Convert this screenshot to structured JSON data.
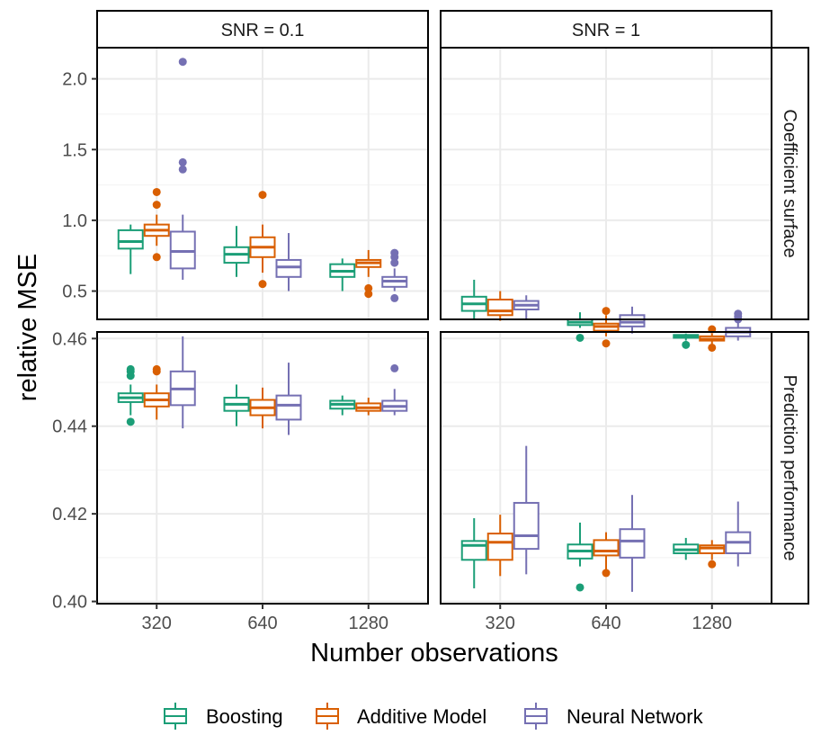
{
  "chart_data": {
    "type": "boxplot",
    "xlabel": "Number observations",
    "ylabel": "relative MSE",
    "categories": [
      "320",
      "640",
      "1280"
    ],
    "col_facets": [
      "SNR = 0.1",
      "SNR = 1"
    ],
    "row_facets": [
      "Coefficient surface",
      "Prediction performance"
    ],
    "legend": {
      "position": "bottom",
      "entries": [
        {
          "name": "Boosting",
          "color": "#1B9E77"
        },
        {
          "name": "Additive Model",
          "color": "#D95F02"
        },
        {
          "name": "Neural Network",
          "color": "#7570B3"
        }
      ]
    },
    "rows": [
      {
        "facet": "Coefficient surface",
        "ylim": [
          0.3,
          2.22
        ],
        "yticks": [
          0.5,
          1.0,
          1.5,
          2.0
        ],
        "ytick_labels": [
          "0.5",
          "1.0",
          "1.5",
          "2.0"
        ],
        "minor_yticks": [
          0.75,
          1.25,
          1.75
        ],
        "panels": [
          {
            "facet": "SNR = 0.1",
            "boxes": [
              {
                "category": "320",
                "series": "Boosting",
                "stats": [
                  0.62,
                  0.8,
                  0.85,
                  0.93,
                  0.97
                ],
                "outliers": []
              },
              {
                "category": "320",
                "series": "Additive Model",
                "stats": [
                  0.82,
                  0.89,
                  0.93,
                  0.97,
                  1.04
                ],
                "outliers": [
                  0.74,
                  1.11,
                  1.2
                ]
              },
              {
                "category": "320",
                "series": "Neural Network",
                "stats": [
                  0.58,
                  0.66,
                  0.78,
                  0.92,
                  1.04
                ],
                "outliers": [
                  1.36,
                  1.41,
                  2.12
                ]
              },
              {
                "category": "640",
                "series": "Boosting",
                "stats": [
                  0.6,
                  0.7,
                  0.76,
                  0.81,
                  0.96
                ],
                "outliers": []
              },
              {
                "category": "640",
                "series": "Additive Model",
                "stats": [
                  0.63,
                  0.74,
                  0.81,
                  0.88,
                  0.97
                ],
                "outliers": [
                  0.55,
                  1.18
                ]
              },
              {
                "category": "640",
                "series": "Neural Network",
                "stats": [
                  0.5,
                  0.6,
                  0.67,
                  0.72,
                  0.91
                ],
                "outliers": []
              },
              {
                "category": "1280",
                "series": "Boosting",
                "stats": [
                  0.5,
                  0.6,
                  0.64,
                  0.69,
                  0.73
                ],
                "outliers": []
              },
              {
                "category": "1280",
                "series": "Additive Model",
                "stats": [
                  0.6,
                  0.67,
                  0.7,
                  0.72,
                  0.79
                ],
                "outliers": [
                  0.48,
                  0.52
                ]
              },
              {
                "category": "1280",
                "series": "Neural Network",
                "stats": [
                  0.5,
                  0.53,
                  0.57,
                  0.6,
                  0.66
                ],
                "outliers": [
                  0.45,
                  0.7,
                  0.74,
                  0.77
                ]
              }
            ]
          },
          {
            "facet": "SNR = 1",
            "boxes": [
              {
                "category": "320",
                "series": "Boosting",
                "stats": [
                  0.3,
                  0.36,
                  0.41,
                  0.46,
                  0.58
                ],
                "outliers": []
              },
              {
                "category": "320",
                "series": "Additive Model",
                "stats": [
                  0.29,
                  0.33,
                  0.36,
                  0.44,
                  0.5
                ],
                "outliers": []
              },
              {
                "category": "320",
                "series": "Neural Network",
                "stats": [
                  0.3,
                  0.37,
                  0.4,
                  0.43,
                  0.47
                ],
                "outliers": []
              },
              {
                "category": "640",
                "series": "Boosting",
                "stats": [
                  0.24,
                  0.26,
                  0.28,
                  0.3,
                  0.35
                ],
                "outliers": [
                  0.17
                ]
              },
              {
                "category": "640",
                "series": "Additive Model",
                "stats": [
                  0.18,
                  0.22,
                  0.25,
                  0.27,
                  0.33
                ],
                "outliers": [
                  0.13,
                  0.36
                ]
              },
              {
                "category": "640",
                "series": "Neural Network",
                "stats": [
                  0.2,
                  0.25,
                  0.28,
                  0.33,
                  0.39
                ],
                "outliers": []
              },
              {
                "category": "1280",
                "series": "Boosting",
                "stats": [
                  0.15,
                  0.17,
                  0.18,
                  0.19,
                  0.2
                ],
                "outliers": [
                  0.12
                ]
              },
              {
                "category": "1280",
                "series": "Additive Model",
                "stats": [
                  0.12,
                  0.15,
                  0.16,
                  0.18,
                  0.2
                ],
                "outliers": [
                  0.1,
                  0.23
                ]
              },
              {
                "category": "1280",
                "series": "Neural Network",
                "stats": [
                  0.15,
                  0.18,
                  0.21,
                  0.24,
                  0.28
                ],
                "outliers": [
                  0.3,
                  0.32,
                  0.34
                ]
              }
            ]
          }
        ]
      },
      {
        "facet": "Prediction performance",
        "ylim": [
          0.3995,
          0.4615
        ],
        "yticks": [
          0.4,
          0.42,
          0.44,
          0.46
        ],
        "ytick_labels": [
          "0.40",
          "0.42",
          "0.44",
          "0.46"
        ],
        "minor_yticks": [
          0.41,
          0.43,
          0.45
        ],
        "panels": [
          {
            "facet": "SNR = 0.1",
            "boxes": [
              {
                "category": "320",
                "series": "Boosting",
                "stats": [
                  0.4425,
                  0.4455,
                  0.4465,
                  0.4475,
                  0.4495
                ],
                "outliers": [
                  0.441,
                  0.4515,
                  0.4525,
                  0.453
                ]
              },
              {
                "category": "320",
                "series": "Additive Model",
                "stats": [
                  0.4415,
                  0.4445,
                  0.446,
                  0.4475,
                  0.4495
                ],
                "outliers": [
                  0.4525,
                  0.453
                ]
              },
              {
                "category": "320",
                "series": "Neural Network",
                "stats": [
                  0.4395,
                  0.4448,
                  0.4485,
                  0.4525,
                  0.4605
                ],
                "outliers": []
              },
              {
                "category": "640",
                "series": "Boosting",
                "stats": [
                  0.44,
                  0.4435,
                  0.445,
                  0.4465,
                  0.4495
                ],
                "outliers": []
              },
              {
                "category": "640",
                "series": "Additive Model",
                "stats": [
                  0.4395,
                  0.4425,
                  0.4442,
                  0.446,
                  0.4488
                ],
                "outliers": []
              },
              {
                "category": "640",
                "series": "Neural Network",
                "stats": [
                  0.438,
                  0.4415,
                  0.4448,
                  0.447,
                  0.4545
                ],
                "outliers": []
              },
              {
                "category": "1280",
                "series": "Boosting",
                "stats": [
                  0.4425,
                  0.444,
                  0.445,
                  0.4458,
                  0.447
                ],
                "outliers": []
              },
              {
                "category": "1280",
                "series": "Additive Model",
                "stats": [
                  0.4425,
                  0.4435,
                  0.4442,
                  0.4452,
                  0.4465
                ],
                "outliers": []
              },
              {
                "category": "1280",
                "series": "Neural Network",
                "stats": [
                  0.4425,
                  0.4435,
                  0.4445,
                  0.4458,
                  0.4485
                ],
                "outliers": [
                  0.4532
                ]
              }
            ]
          },
          {
            "facet": "SNR = 1",
            "boxes": [
              {
                "category": "320",
                "series": "Boosting",
                "stats": [
                  0.403,
                  0.4095,
                  0.4128,
                  0.4138,
                  0.419
                ],
                "outliers": []
              },
              {
                "category": "320",
                "series": "Additive Model",
                "stats": [
                  0.4058,
                  0.4095,
                  0.4135,
                  0.4155,
                  0.4198
                ],
                "outliers": []
              },
              {
                "category": "320",
                "series": "Neural Network",
                "stats": [
                  0.4062,
                  0.412,
                  0.415,
                  0.4225,
                  0.4355
                ],
                "outliers": []
              },
              {
                "category": "640",
                "series": "Boosting",
                "stats": [
                  0.408,
                  0.4098,
                  0.4115,
                  0.413,
                  0.418
                ],
                "outliers": [
                  0.4032
                ]
              },
              {
                "category": "640",
                "series": "Additive Model",
                "stats": [
                  0.4072,
                  0.4105,
                  0.4115,
                  0.414,
                  0.4158
                ],
                "outliers": [
                  0.4065
                ]
              },
              {
                "category": "640",
                "series": "Neural Network",
                "stats": [
                  0.4022,
                  0.41,
                  0.4138,
                  0.4165,
                  0.4243
                ],
                "outliers": []
              },
              {
                "category": "1280",
                "series": "Boosting",
                "stats": [
                  0.4095,
                  0.411,
                  0.4118,
                  0.413,
                  0.4145
                ],
                "outliers": []
              },
              {
                "category": "1280",
                "series": "Additive Model",
                "stats": [
                  0.4095,
                  0.411,
                  0.4122,
                  0.4128,
                  0.414
                ],
                "outliers": [
                  0.4085
                ]
              },
              {
                "category": "1280",
                "series": "Neural Network",
                "stats": [
                  0.408,
                  0.411,
                  0.4135,
                  0.4158,
                  0.4228
                ],
                "outliers": []
              }
            ]
          }
        ]
      }
    ]
  }
}
